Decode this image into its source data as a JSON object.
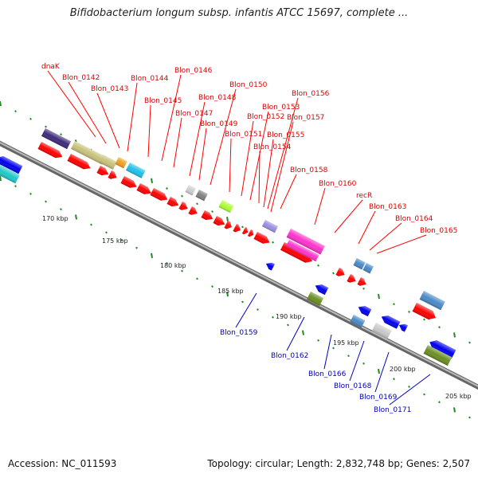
{
  "title": "Bifidobacterium longum subsp. infantis ATCC 15697, complete ...",
  "accession": "Accession: NC_011593",
  "summary": "Topology: circular; Length: 2,832,748 bp; Genes: 2,507",
  "colors": {
    "forward_label": "#e00000",
    "reverse_label": "#0000c0",
    "backbone": "#888888",
    "tick": "#228b22"
  },
  "scale": [
    "170 kbp",
    "175 kbp",
    "180 kbp",
    "185 kbp",
    "190 kbp",
    "195 kbp",
    "200 kbp",
    "205 kbp"
  ],
  "forward_labels": [
    "dnaK",
    "Blon_0142",
    "Blon_0143",
    "Blon_0144",
    "Blon_0145",
    "Blon_0146",
    "Blon_0147",
    "Blon_0148",
    "Blon_0149",
    "Blon_0150",
    "Blon_0151",
    "Blon_0152",
    "Blon_0153",
    "Blon_0154",
    "Blon_0155",
    "Blon_0156",
    "Blon_0157",
    "Blon_0158",
    "Blon_0160",
    "recR",
    "Blon_0163",
    "Blon_0164",
    "Blon_0165"
  ],
  "reverse_labels": [
    "Blon_0159",
    "Blon_0162",
    "Blon_0166",
    "Blon_0168",
    "Blon_0169",
    "Blon_0171"
  ]
}
